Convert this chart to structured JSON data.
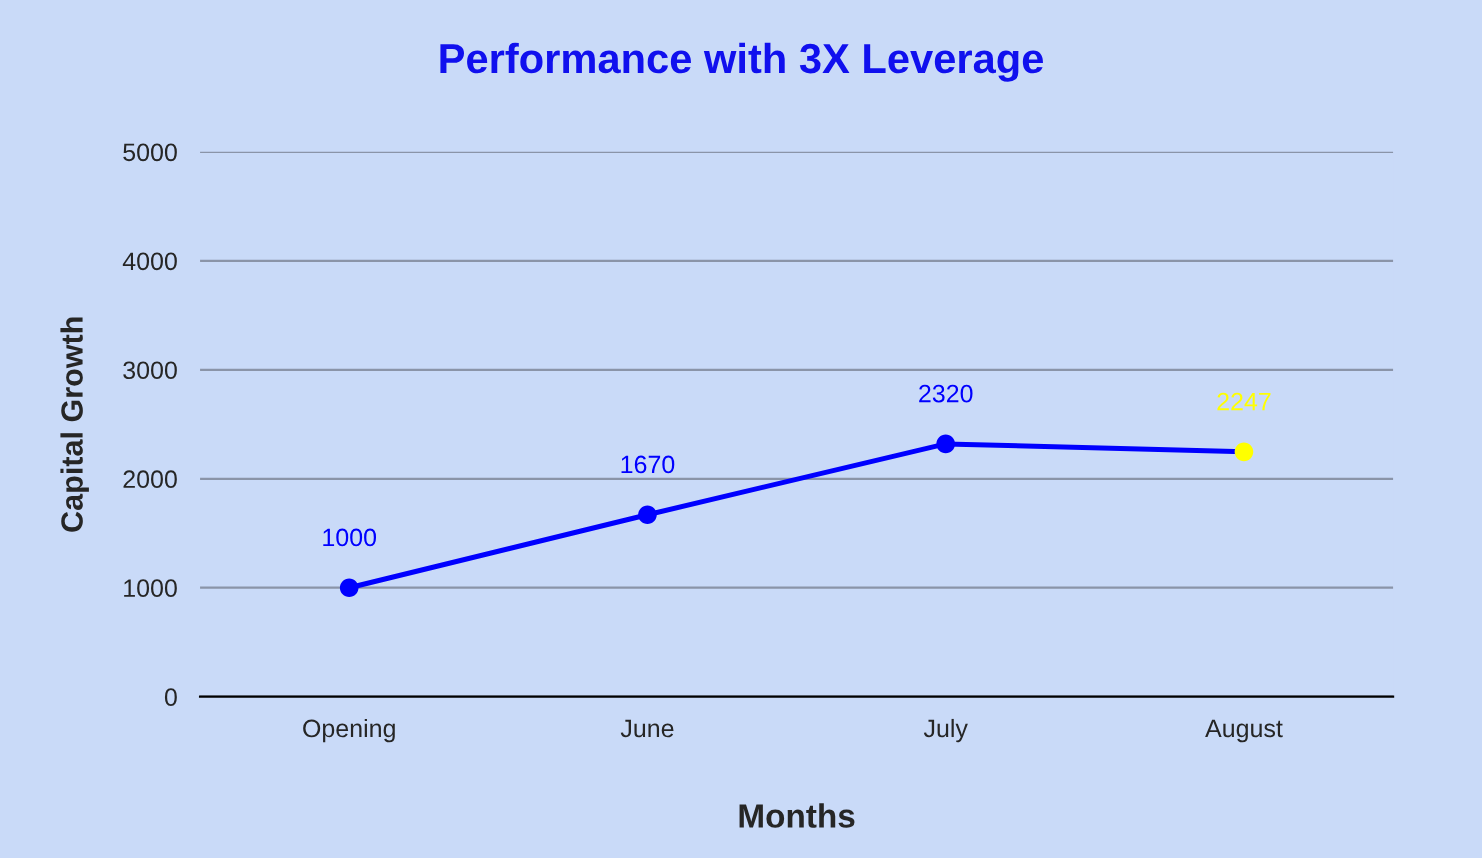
{
  "chart_data": {
    "type": "line",
    "title": "Performance with 3X Leverage",
    "xlabel": "Months",
    "ylabel": "Capital Growth",
    "categories": [
      "Opening",
      "June",
      "July",
      "August"
    ],
    "series": [
      {
        "color": "#0000ff",
        "colors": [
          "#0000ff",
          "#0000ff",
          "#0000ff",
          "#ffff00"
        ],
        "values": [
          1000,
          1670,
          2320,
          2247
        ]
      }
    ],
    "ylim": [
      0,
      5000
    ],
    "yticks": [
      0,
      1000,
      2000,
      3000,
      4000,
      5000
    ],
    "grid": "y",
    "marker": "circle",
    "line_style": "solid",
    "data_labels": true,
    "legend": false
  }
}
